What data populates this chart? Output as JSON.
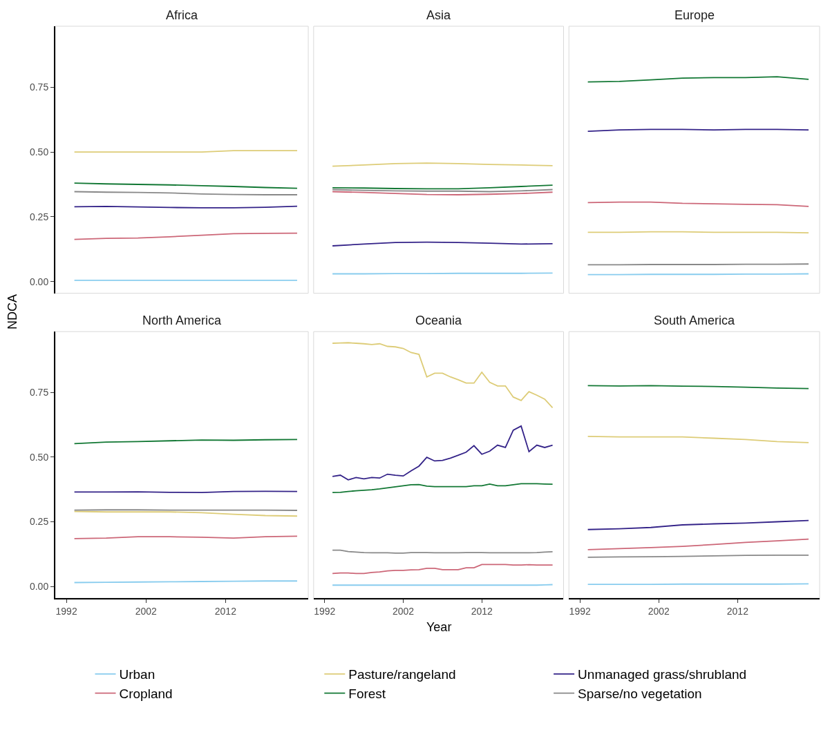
{
  "chart_data": [
    {
      "type": "line",
      "title": "Africa",
      "ylabel": "NDCA",
      "legend": "bottom",
      "tick_labels": "y",
      "x": [
        1993,
        1997,
        2001,
        2005,
        2009,
        2013,
        2017,
        2021
      ],
      "xlim": [
        1990.6,
        2022.4
      ],
      "xticks": [
        1992,
        2002,
        2012
      ],
      "ylim": [
        -0.045,
        0.985
      ],
      "yticks": [
        {
          "value": 0,
          "label": "0.00"
        },
        {
          "value": 0.25,
          "label": "0.25"
        },
        {
          "value": 0.5,
          "label": "0.50"
        },
        {
          "value": 0.75,
          "label": "0.75"
        }
      ],
      "series": [
        {
          "name": "Urban",
          "color": "#88ccee",
          "values": [
            0.005,
            0.005,
            0.005,
            0.005,
            0.005,
            0.005,
            0.005,
            0.005
          ]
        },
        {
          "name": "Pasture/rangeland",
          "color": "#ddcc77",
          "values": [
            0.5,
            0.5,
            0.5,
            0.5,
            0.5,
            0.505,
            0.505,
            0.505
          ]
        },
        {
          "name": "Unmanaged grass/shrubland",
          "color": "#332288",
          "values": [
            0.289,
            0.29,
            0.288,
            0.286,
            0.285,
            0.285,
            0.287,
            0.291
          ]
        },
        {
          "name": "Cropland",
          "color": "#cc6677",
          "values": [
            0.163,
            0.167,
            0.168,
            0.173,
            0.179,
            0.185,
            0.186,
            0.187
          ]
        },
        {
          "name": "Forest",
          "color": "#117733",
          "values": [
            0.38,
            0.377,
            0.375,
            0.373,
            0.37,
            0.367,
            0.363,
            0.36
          ]
        },
        {
          "name": "Sparse/no vegetation",
          "color": "#888888",
          "values": [
            0.347,
            0.345,
            0.344,
            0.342,
            0.338,
            0.336,
            0.335,
            0.335
          ]
        }
      ]
    },
    {
      "type": "line",
      "title": "Asia",
      "tick_labels": false,
      "x": [
        1993,
        1997,
        2001,
        2005,
        2009,
        2013,
        2017,
        2021
      ],
      "xlim": [
        1990.6,
        2022.4
      ],
      "xticks": [
        1992,
        2002,
        2012
      ],
      "ylim": [
        -0.045,
        0.985
      ],
      "series": [
        {
          "color": "#88ccee",
          "values": [
            0.03,
            0.03,
            0.031,
            0.031,
            0.032,
            0.032,
            0.032,
            0.033
          ]
        },
        {
          "color": "#ddcc77",
          "values": [
            0.445,
            0.45,
            0.455,
            0.457,
            0.455,
            0.452,
            0.45,
            0.447
          ]
        },
        {
          "color": "#332288",
          "values": [
            0.138,
            0.145,
            0.151,
            0.152,
            0.151,
            0.148,
            0.145,
            0.146
          ]
        },
        {
          "color": "#cc6677",
          "values": [
            0.347,
            0.344,
            0.34,
            0.336,
            0.335,
            0.337,
            0.34,
            0.345
          ]
        },
        {
          "color": "#117733",
          "values": [
            0.362,
            0.361,
            0.359,
            0.358,
            0.358,
            0.362,
            0.367,
            0.372
          ]
        },
        {
          "color": "#888888",
          "values": [
            0.355,
            0.352,
            0.35,
            0.349,
            0.349,
            0.347,
            0.35,
            0.355
          ]
        }
      ]
    },
    {
      "type": "line",
      "title": "Europe",
      "tick_labels": false,
      "x": [
        1993,
        1997,
        2001,
        2005,
        2009,
        2013,
        2017,
        2021
      ],
      "xlim": [
        1990.6,
        2022.4
      ],
      "xticks": [
        1992,
        2002,
        2012
      ],
      "ylim": [
        -0.045,
        0.985
      ],
      "series": [
        {
          "color": "#88ccee",
          "values": [
            0.027,
            0.027,
            0.028,
            0.028,
            0.028,
            0.029,
            0.029,
            0.03
          ]
        },
        {
          "color": "#ddcc77",
          "values": [
            0.19,
            0.19,
            0.192,
            0.192,
            0.19,
            0.19,
            0.19,
            0.188
          ]
        },
        {
          "color": "#332288",
          "values": [
            0.58,
            0.585,
            0.587,
            0.587,
            0.585,
            0.587,
            0.587,
            0.585
          ]
        },
        {
          "color": "#cc6677",
          "values": [
            0.305,
            0.307,
            0.307,
            0.302,
            0.3,
            0.298,
            0.297,
            0.29
          ]
        },
        {
          "color": "#117733",
          "values": [
            0.77,
            0.772,
            0.778,
            0.785,
            0.787,
            0.787,
            0.79,
            0.78
          ]
        },
        {
          "color": "#888888",
          "values": [
            0.065,
            0.065,
            0.066,
            0.066,
            0.066,
            0.067,
            0.067,
            0.068
          ]
        }
      ]
    },
    {
      "type": "line",
      "title": "North America",
      "x": [
        1993,
        1997,
        2001,
        2005,
        2009,
        2013,
        2017,
        2021
      ],
      "xlim": [
        1990.6,
        2022.4
      ],
      "xticks": [
        1992,
        2002,
        2012
      ],
      "ylim": [
        -0.045,
        0.985
      ],
      "yticks": [
        {
          "value": 0,
          "label": "0.00"
        },
        {
          "value": 0.25,
          "label": "0.25"
        },
        {
          "value": 0.5,
          "label": "0.50"
        },
        {
          "value": 0.75,
          "label": "0.75"
        }
      ],
      "series": [
        {
          "color": "#88ccee",
          "values": [
            0.015,
            0.016,
            0.017,
            0.018,
            0.019,
            0.02,
            0.021,
            0.021
          ]
        },
        {
          "color": "#ddcc77",
          "values": [
            0.29,
            0.288,
            0.288,
            0.288,
            0.285,
            0.279,
            0.274,
            0.272
          ]
        },
        {
          "color": "#332288",
          "values": [
            0.365,
            0.365,
            0.366,
            0.364,
            0.363,
            0.367,
            0.368,
            0.367
          ]
        },
        {
          "color": "#cc6677",
          "values": [
            0.185,
            0.187,
            0.192,
            0.192,
            0.19,
            0.187,
            0.192,
            0.194
          ]
        },
        {
          "color": "#117733",
          "values": [
            0.552,
            0.558,
            0.56,
            0.563,
            0.566,
            0.565,
            0.567,
            0.568
          ]
        },
        {
          "color": "#888888",
          "values": [
            0.295,
            0.296,
            0.296,
            0.295,
            0.295,
            0.295,
            0.295,
            0.294
          ]
        }
      ]
    },
    {
      "type": "line",
      "title": "Oceania",
      "xlabel": "Year",
      "tick_labels": "x",
      "x": [
        1993,
        1994,
        1995,
        1996,
        1997,
        1998,
        1999,
        2000,
        2001,
        2002,
        2003,
        2004,
        2005,
        2006,
        2007,
        2008,
        2009,
        2010,
        2011,
        2012,
        2013,
        2014,
        2015,
        2016,
        2017,
        2018,
        2019,
        2020,
        2021
      ],
      "xlim": [
        1990.6,
        2022.4
      ],
      "xticks": [
        1992,
        2002,
        2012
      ],
      "ylim": [
        -0.045,
        0.985
      ],
      "series": [
        {
          "color": "#88ccee",
          "values": [
            0.005,
            0.005,
            0.005,
            0.005,
            0.005,
            0.005,
            0.005,
            0.005,
            0.005,
            0.005,
            0.005,
            0.005,
            0.005,
            0.005,
            0.005,
            0.005,
            0.005,
            0.005,
            0.005,
            0.005,
            0.005,
            0.005,
            0.005,
            0.005,
            0.005,
            0.005,
            0.005,
            0.006,
            0.007
          ]
        },
        {
          "color": "#ddcc77",
          "values": [
            0.94,
            0.941,
            0.942,
            0.94,
            0.938,
            0.935,
            0.938,
            0.928,
            0.926,
            0.92,
            0.904,
            0.897,
            0.81,
            0.824,
            0.824,
            0.81,
            0.799,
            0.786,
            0.786,
            0.828,
            0.789,
            0.775,
            0.775,
            0.732,
            0.719,
            0.753,
            0.739,
            0.724,
            0.691
          ]
        },
        {
          "color": "#332288",
          "values": [
            0.425,
            0.43,
            0.412,
            0.421,
            0.416,
            0.421,
            0.419,
            0.434,
            0.43,
            0.427,
            0.447,
            0.465,
            0.499,
            0.485,
            0.487,
            0.496,
            0.507,
            0.519,
            0.544,
            0.511,
            0.523,
            0.546,
            0.537,
            0.604,
            0.62,
            0.521,
            0.546,
            0.537,
            0.546
          ]
        },
        {
          "color": "#cc6677",
          "values": [
            0.05,
            0.052,
            0.052,
            0.05,
            0.05,
            0.054,
            0.056,
            0.06,
            0.062,
            0.062,
            0.064,
            0.065,
            0.07,
            0.07,
            0.065,
            0.065,
            0.065,
            0.072,
            0.072,
            0.085,
            0.085,
            0.085,
            0.085,
            0.083,
            0.083,
            0.084,
            0.083,
            0.083,
            0.083
          ]
        },
        {
          "color": "#117733",
          "values": [
            0.363,
            0.364,
            0.367,
            0.37,
            0.372,
            0.374,
            0.377,
            0.381,
            0.385,
            0.389,
            0.393,
            0.394,
            0.388,
            0.386,
            0.386,
            0.386,
            0.386,
            0.386,
            0.389,
            0.389,
            0.396,
            0.389,
            0.389,
            0.393,
            0.397,
            0.397,
            0.397,
            0.396,
            0.395
          ]
        },
        {
          "color": "#888888",
          "values": [
            0.14,
            0.14,
            0.135,
            0.133,
            0.131,
            0.13,
            0.13,
            0.13,
            0.129,
            0.129,
            0.131,
            0.131,
            0.131,
            0.13,
            0.13,
            0.13,
            0.13,
            0.131,
            0.131,
            0.131,
            0.13,
            0.13,
            0.13,
            0.13,
            0.13,
            0.13,
            0.131,
            0.133,
            0.134
          ]
        }
      ]
    },
    {
      "type": "line",
      "title": "South America",
      "tick_labels": "x",
      "x": [
        1993,
        1997,
        2001,
        2005,
        2009,
        2013,
        2017,
        2021
      ],
      "xlim": [
        1990.6,
        2022.4
      ],
      "xticks": [
        1992,
        2002,
        2012
      ],
      "ylim": [
        -0.045,
        0.985
      ],
      "series": [
        {
          "color": "#88ccee",
          "values": [
            0.008,
            0.008,
            0.008,
            0.009,
            0.009,
            0.009,
            0.009,
            0.01
          ]
        },
        {
          "color": "#ddcc77",
          "values": [
            0.58,
            0.578,
            0.578,
            0.578,
            0.573,
            0.568,
            0.56,
            0.556
          ]
        },
        {
          "color": "#332288",
          "values": [
            0.22,
            0.223,
            0.228,
            0.238,
            0.242,
            0.245,
            0.25,
            0.255
          ]
        },
        {
          "color": "#cc6677",
          "values": [
            0.142,
            0.146,
            0.15,
            0.155,
            0.162,
            0.17,
            0.176,
            0.183
          ]
        },
        {
          "color": "#117733",
          "values": [
            0.776,
            0.775,
            0.776,
            0.774,
            0.773,
            0.77,
            0.767,
            0.765
          ]
        },
        {
          "color": "#888888",
          "values": [
            0.113,
            0.114,
            0.115,
            0.116,
            0.118,
            0.12,
            0.121,
            0.121
          ]
        }
      ]
    }
  ]
}
